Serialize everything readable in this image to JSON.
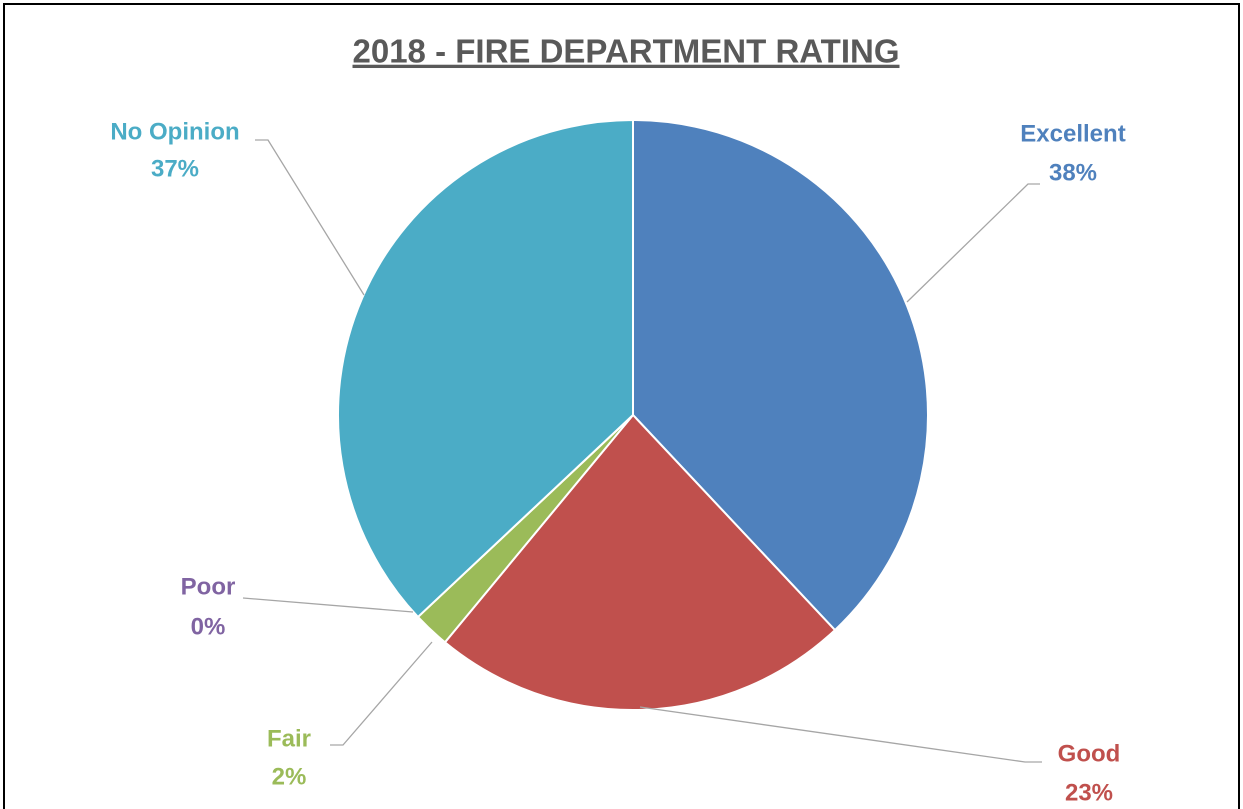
{
  "chart_data": {
    "type": "pie",
    "title": "2018 - FIRE DEPARTMENT RATING",
    "categories": [
      "Excellent",
      "Good",
      "Fair",
      "Poor",
      "No Opinion"
    ],
    "values": [
      38,
      23,
      2,
      0,
      37
    ],
    "value_labels": [
      "38%",
      "23%",
      "2%",
      "0%",
      "37%"
    ],
    "colors": [
      "#4f81bd",
      "#c0504d",
      "#9bbb59",
      "#8064a2",
      "#4bacc6"
    ]
  }
}
